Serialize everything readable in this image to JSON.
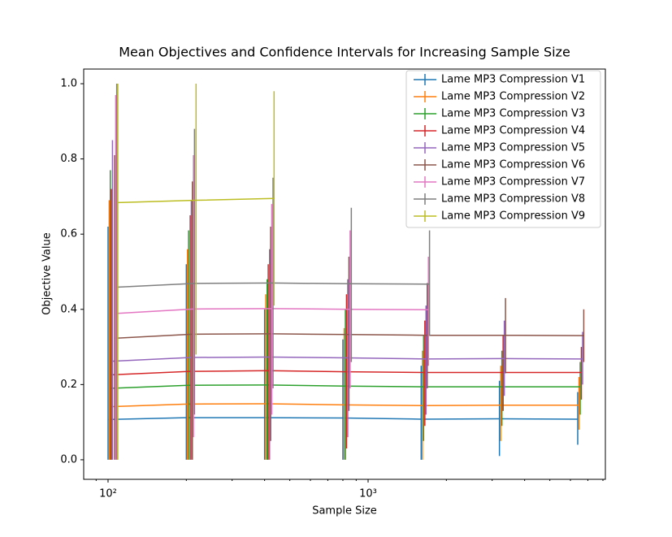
{
  "chart_data": {
    "type": "errorbar",
    "title": "Mean Objectives and Confidence Intervals for Increasing Sample Size",
    "xlabel": "Sample Size",
    "ylabel": "Objective Value",
    "xscale": "log",
    "xlim": [
      80.6,
      8175
    ],
    "ylim": [
      -0.052,
      1.039
    ],
    "xticks": [
      {
        "value": 100,
        "label": "10²"
      },
      {
        "value": 1000,
        "label": "10³"
      }
    ],
    "xminorticks": [
      90,
      200,
      300,
      400,
      500,
      600,
      700,
      800,
      900,
      2000,
      3000,
      4000,
      5000,
      6000,
      7000,
      8000
    ],
    "yticks": [
      {
        "value": 0,
        "label": "0.0"
      },
      {
        "value": 0.2,
        "label": "0.2"
      },
      {
        "value": 0.4,
        "label": "0.4"
      },
      {
        "value": 0.6,
        "label": "0.6"
      },
      {
        "value": 0.8,
        "label": "0.8"
      },
      {
        "value": 1,
        "label": "1.0"
      }
    ],
    "legend": "upper right",
    "series": [
      {
        "name": "Lame MP3 Compression V1",
        "color": "#1f77b4",
        "x": [
          100,
          200,
          400,
          800,
          1600,
          3200,
          6400
        ],
        "values": [
          0.107,
          0.112,
          0.112,
          0.111,
          0.108,
          0.109,
          0.108
        ],
        "lower": [
          0,
          0,
          0,
          0,
          0,
          0.01,
          0.04
        ],
        "upper": [
          0.62,
          0.52,
          0.4,
          0.32,
          0.25,
          0.21,
          0.18
        ]
      },
      {
        "name": "Lame MP3 Compression V2",
        "color": "#ff7f0e",
        "x": [
          101,
          202,
          404,
          809,
          1618,
          3235,
          6470
        ],
        "values": [
          0.141,
          0.148,
          0.149,
          0.146,
          0.144,
          0.145,
          0.145
        ],
        "lower": [
          0,
          0,
          0,
          0,
          0,
          0.05,
          0.08
        ],
        "upper": [
          0.69,
          0.56,
          0.44,
          0.35,
          0.29,
          0.25,
          0.22
        ]
      },
      {
        "name": "Lame MP3 Compression V3",
        "color": "#2ca02c",
        "x": [
          102,
          204,
          409,
          818,
          1635,
          3270,
          6541
        ],
        "values": [
          0.19,
          0.198,
          0.199,
          0.196,
          0.194,
          0.194,
          0.194
        ],
        "lower": [
          0,
          0,
          0,
          0,
          0.05,
          0.09,
          0.12
        ],
        "upper": [
          0.77,
          0.61,
          0.48,
          0.4,
          0.33,
          0.29,
          0.26
        ]
      },
      {
        "name": "Lame MP3 Compression V4",
        "color": "#d62728",
        "x": [
          103,
          207,
          413,
          826,
          1653,
          3306,
          6611
        ],
        "values": [
          0.226,
          0.235,
          0.237,
          0.234,
          0.232,
          0.232,
          0.232
        ],
        "lower": [
          0,
          0,
          0,
          0.03,
          0.09,
          0.13,
          0.16
        ],
        "upper": [
          0.72,
          0.65,
          0.52,
          0.44,
          0.37,
          0.33,
          0.3
        ]
      },
      {
        "name": "Lame MP3 Compression V5",
        "color": "#9467bd",
        "x": [
          104,
          209,
          418,
          835,
          1670,
          3341,
          6682
        ],
        "values": [
          0.262,
          0.272,
          0.273,
          0.271,
          0.268,
          0.269,
          0.268
        ],
        "lower": [
          0,
          0,
          0,
          0.06,
          0.12,
          0.17,
          0.2
        ],
        "upper": [
          0.85,
          0.69,
          0.56,
          0.48,
          0.41,
          0.37,
          0.34
        ]
      },
      {
        "name": "Lame MP3 Compression V6",
        "color": "#8c564b",
        "x": [
          106,
          211,
          422,
          844,
          1688,
          3376,
          6752
        ],
        "values": [
          0.323,
          0.334,
          0.335,
          0.333,
          0.331,
          0.331,
          0.33
        ],
        "lower": [
          0,
          0,
          0.05,
          0.13,
          0.19,
          0.23,
          0.26
        ],
        "upper": [
          0.81,
          0.74,
          0.62,
          0.54,
          0.47,
          0.43,
          0.4
        ]
      },
      {
        "name": "Lame MP3 Compression V7",
        "color": "#e377c2",
        "x": [
          107,
          213,
          426,
          853,
          1706
        ],
        "values": [
          0.389,
          0.401,
          0.402,
          0.4,
          0.399
        ],
        "lower": [
          0,
          0.06,
          0.12,
          0.19,
          0.25
        ],
        "upper": [
          0.97,
          0.81,
          0.68,
          0.61,
          0.54
        ]
      },
      {
        "name": "Lame MP3 Compression V8",
        "color": "#7f7f7f",
        "x": [
          108,
          215,
          431,
          862,
          1723
        ],
        "values": [
          0.459,
          0.469,
          0.47,
          0.468,
          0.467
        ],
        "lower": [
          0,
          0.12,
          0.19,
          0.26,
          0.33
        ],
        "upper": [
          1.0,
          0.88,
          0.75,
          0.67,
          0.61
        ]
      },
      {
        "name": "Lame MP3 Compression V9",
        "color": "#bcbd22",
        "x": [
          109,
          218,
          435
        ],
        "values": [
          0.684,
          0.69,
          0.695
        ],
        "lower": [
          0,
          0.28,
          0.41
        ],
        "upper": [
          1.0,
          1.0,
          0.98
        ]
      }
    ]
  }
}
